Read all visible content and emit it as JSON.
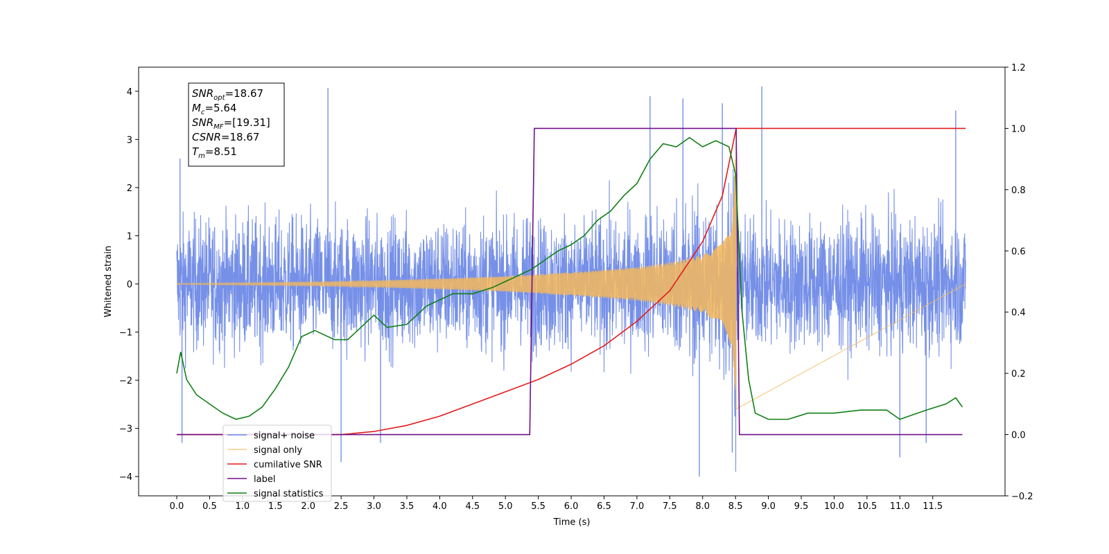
{
  "chart_data": {
    "type": "line",
    "title": "",
    "xlabel": "Time (s)",
    "ylabel": "Whitened strain",
    "y2label": "",
    "xlim": [
      -0.58,
      12.6
    ],
    "ylim": [
      -4.4,
      4.5
    ],
    "y2lim": [
      -0.2,
      1.2
    ],
    "x_ticks": [
      0.0,
      0.5,
      1.0,
      1.5,
      2.0,
      2.5,
      3.0,
      3.5,
      4.0,
      4.5,
      5.0,
      5.5,
      6.0,
      6.5,
      7.0,
      7.5,
      8.0,
      8.5,
      9.0,
      9.5,
      10.0,
      10.5,
      11.0,
      11.5
    ],
    "x_tick_labels": [
      "0.0",
      "0.5",
      "1.0",
      "1.5",
      "2.0",
      "2.5",
      "3.0",
      "3.5",
      "4.0",
      "4.5",
      "5.0",
      "5.5",
      "6.0",
      "6.5",
      "7.0",
      "7.5",
      "8.0",
      "8.5",
      "9.0",
      "9.5",
      "10.0",
      "10.5",
      "11.0",
      "11.5"
    ],
    "y_ticks": [
      -4,
      -3,
      -2,
      -1,
      0,
      1,
      2,
      3,
      4
    ],
    "y_tick_labels": [
      "−4",
      "−3",
      "−2",
      "−1",
      "0",
      "1",
      "2",
      "3",
      "4"
    ],
    "y2_ticks": [
      -0.2,
      0.0,
      0.2,
      0.4,
      0.6,
      0.8,
      1.0,
      1.2
    ],
    "y2_tick_labels": [
      "−0.2",
      "0.0",
      "0.2",
      "0.4",
      "0.6",
      "0.8",
      "1.0",
      "1.2"
    ],
    "grid": false,
    "legend_position": "bottom-left",
    "series": [
      {
        "name": "signal+ noise",
        "color": "#6A87E6",
        "axis": "left",
        "kind": "noise",
        "x_range": [
          0.0,
          12.0
        ],
        "typical_amplitude": 1.6,
        "peaks": [
          [
            0.05,
            2.6
          ],
          [
            0.08,
            -3.3
          ],
          [
            2.3,
            4.07
          ],
          [
            2.5,
            -3.7
          ],
          [
            3.1,
            -3.3
          ],
          [
            7.2,
            3.9
          ],
          [
            7.7,
            3.85
          ],
          [
            7.95,
            -4.0
          ],
          [
            8.3,
            3.75
          ],
          [
            8.45,
            -3.5
          ],
          [
            8.9,
            4.1
          ],
          [
            11.0,
            -3.6
          ],
          [
            11.4,
            -3.3
          ],
          [
            11.85,
            3.6
          ]
        ]
      },
      {
        "name": "signal only",
        "color": "#F5B85C",
        "axis": "left",
        "kind": "chirp",
        "x_range": [
          0.0,
          8.51
        ],
        "envelope": [
          [
            0.0,
            0.01
          ],
          [
            2.0,
            0.04
          ],
          [
            3.0,
            0.07
          ],
          [
            4.0,
            0.11
          ],
          [
            5.0,
            0.16
          ],
          [
            6.0,
            0.24
          ],
          [
            7.0,
            0.35
          ],
          [
            7.5,
            0.45
          ],
          [
            8.0,
            0.6
          ],
          [
            8.3,
            0.85
          ],
          [
            8.45,
            1.3
          ],
          [
            8.51,
            3.0
          ]
        ]
      },
      {
        "name": "cumilative SNR",
        "color": "#E31A1C",
        "axis": "right",
        "x": [
          0.0,
          2.5,
          3.0,
          3.5,
          4.0,
          4.5,
          5.0,
          5.5,
          6.0,
          6.5,
          7.0,
          7.5,
          8.0,
          8.3,
          8.51,
          12.0
        ],
        "y": [
          0.0,
          0.0,
          0.01,
          0.03,
          0.06,
          0.1,
          0.14,
          0.18,
          0.23,
          0.29,
          0.37,
          0.47,
          0.63,
          0.78,
          1.0,
          1.0
        ]
      },
      {
        "name": "label",
        "color": "#6E0F86",
        "axis": "right",
        "x": [
          0.0,
          5.37,
          5.44,
          8.51,
          8.56,
          11.95
        ],
        "y": [
          0.0,
          0.0,
          1.0,
          1.0,
          0.0,
          0.0
        ]
      },
      {
        "name": "signal statistics",
        "color": "#0F7F12",
        "axis": "right",
        "x": [
          0.0,
          0.06,
          0.15,
          0.3,
          0.5,
          0.7,
          0.9,
          1.1,
          1.3,
          1.5,
          1.7,
          1.9,
          2.1,
          2.2,
          2.4,
          2.6,
          2.8,
          3.0,
          3.2,
          3.5,
          3.8,
          4.0,
          4.2,
          4.5,
          4.8,
          5.0,
          5.2,
          5.4,
          5.6,
          5.8,
          6.0,
          6.2,
          6.4,
          6.6,
          6.8,
          7.0,
          7.2,
          7.4,
          7.6,
          7.8,
          8.0,
          8.2,
          8.4,
          8.5,
          8.6,
          8.7,
          8.8,
          9.0,
          9.3,
          9.6,
          10.0,
          10.4,
          10.8,
          11.0,
          11.4,
          11.7,
          11.85,
          11.95
        ],
        "y": [
          0.2,
          0.27,
          0.18,
          0.13,
          0.1,
          0.07,
          0.05,
          0.06,
          0.09,
          0.15,
          0.22,
          0.32,
          0.34,
          0.33,
          0.31,
          0.31,
          0.35,
          0.39,
          0.35,
          0.36,
          0.42,
          0.44,
          0.46,
          0.46,
          0.48,
          0.5,
          0.52,
          0.54,
          0.57,
          0.6,
          0.62,
          0.65,
          0.7,
          0.73,
          0.78,
          0.82,
          0.9,
          0.95,
          0.94,
          0.97,
          0.94,
          0.96,
          0.94,
          0.85,
          0.4,
          0.18,
          0.07,
          0.05,
          0.05,
          0.07,
          0.07,
          0.08,
          0.08,
          0.05,
          0.08,
          0.1,
          0.12,
          0.09
        ]
      }
    ],
    "annotation": [
      {
        "base": "SNR",
        "sub": "opt",
        "value": "=18.67"
      },
      {
        "base": "M",
        "sub": "c",
        "value": "=5.64"
      },
      {
        "base": "SNR",
        "sub": "MF",
        "value": "=[19.31]"
      },
      {
        "base": "CSNR",
        "sub": "",
        "value": "=18.67"
      },
      {
        "base": "T",
        "sub": "m",
        "value": "=8.51"
      }
    ]
  }
}
